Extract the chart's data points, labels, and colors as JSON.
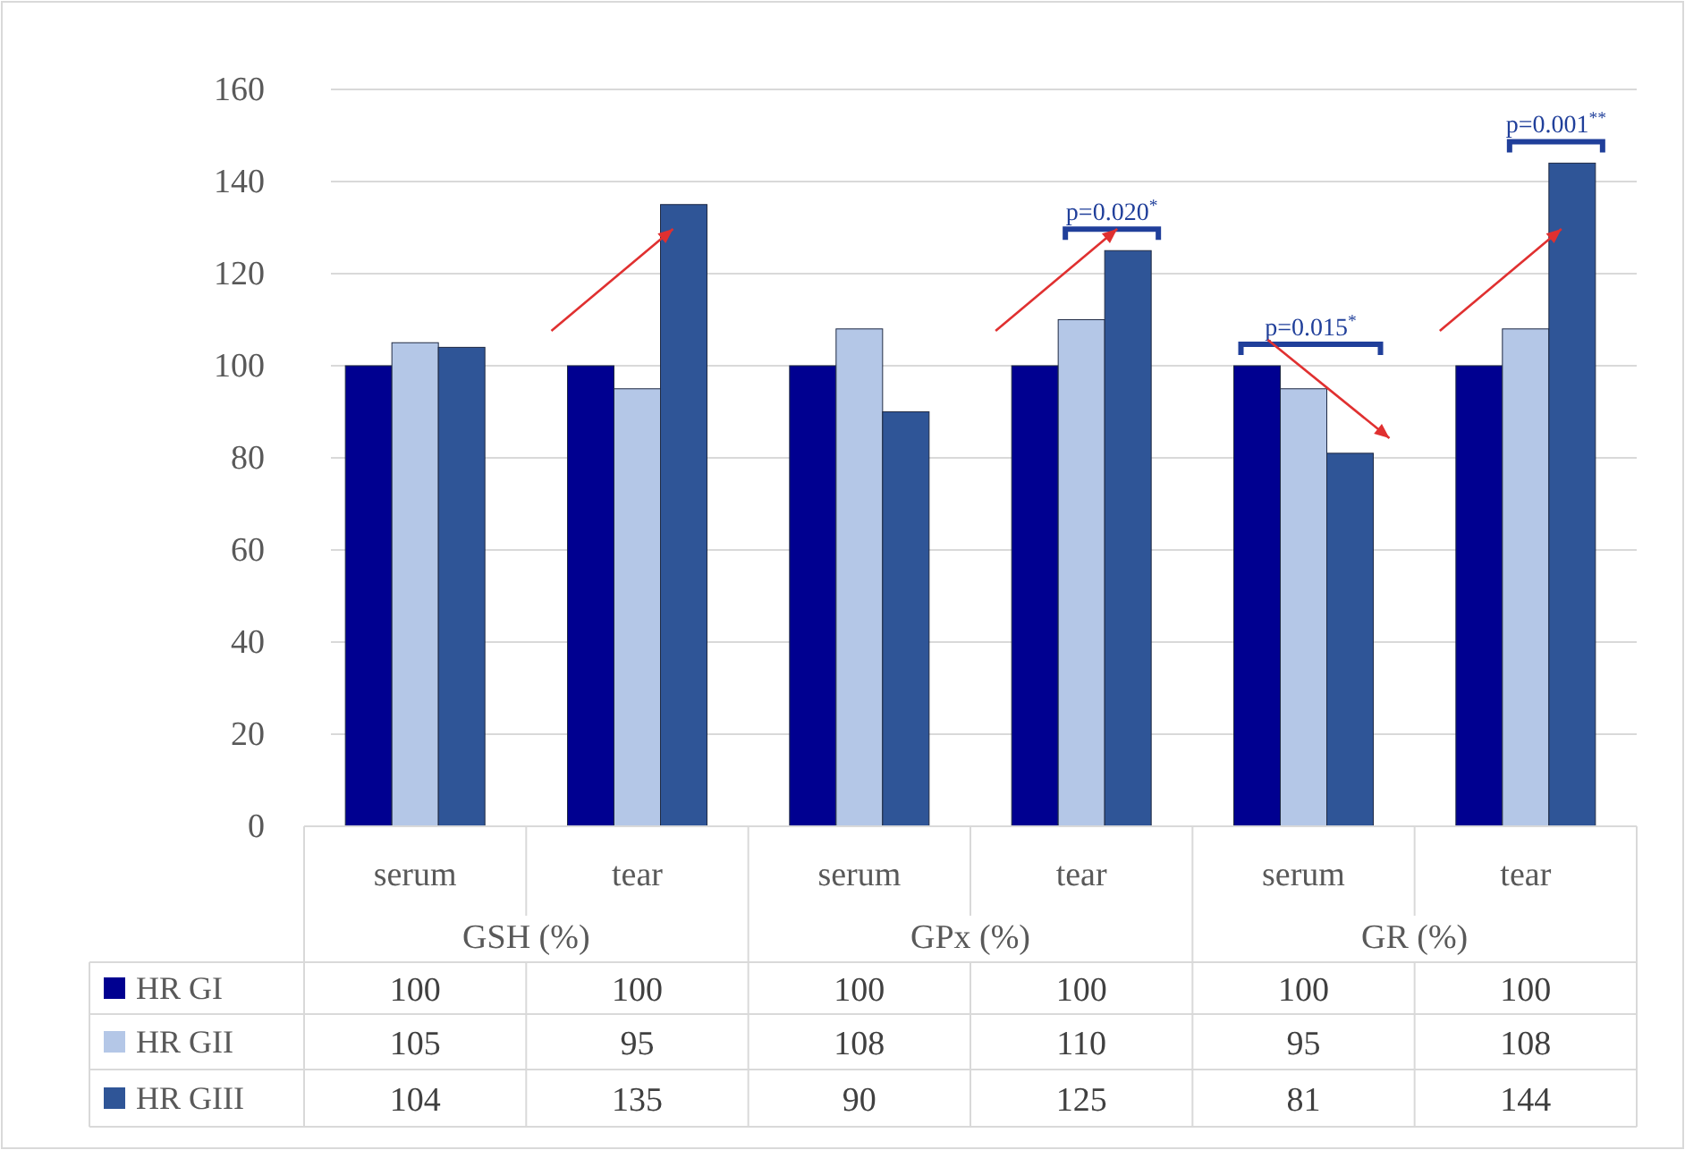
{
  "chart_data": {
    "type": "bar",
    "categories": [
      "serum",
      "tear",
      "serum",
      "tear",
      "serum",
      "tear"
    ],
    "series": [
      {
        "name": "HR GI",
        "color": "#000090",
        "values": [
          100,
          100,
          100,
          100,
          100,
          100
        ]
      },
      {
        "name": "HR GII",
        "color": "#b4c7e7",
        "values": [
          105,
          95,
          108,
          110,
          95,
          108
        ]
      },
      {
        "name": "HR GIII",
        "color": "#2f5597",
        "values": [
          104,
          135,
          90,
          125,
          81,
          144
        ]
      }
    ],
    "ylim": [
      0,
      160
    ],
    "yticks": [
      0,
      20,
      40,
      60,
      80,
      100,
      120,
      140,
      160
    ],
    "grid": "y",
    "legend": "bottom",
    "data_labels": true,
    "annotations": [
      "GSH (%)",
      "GPx (%)",
      "GR (%)",
      "p=0.020$^{*}$",
      "p=0.015$^{*}$",
      "p=0.001$^{**}$"
    ]
  }
}
